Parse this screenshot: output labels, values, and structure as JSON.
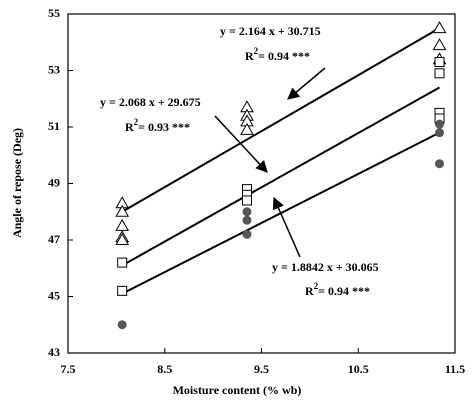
{
  "chart_data": {
    "type": "scatter",
    "xlabel": "Moisture content (% wb)",
    "ylabel": "Angle of repose (Deg)",
    "xlim": [
      7.5,
      11.5
    ],
    "ylim": [
      43,
      55
    ],
    "xticks": [
      7.5,
      8.5,
      9.5,
      10.5,
      11.5
    ],
    "yticks": [
      43,
      45,
      47,
      49,
      51,
      53,
      55
    ],
    "series": [
      {
        "marker": "triangle",
        "color": "#000000",
        "x": [
          8.06,
          8.06,
          8.06,
          8.06,
          8.06,
          9.35,
          9.35,
          9.35,
          9.35,
          11.34,
          11.34,
          11.34
        ],
        "values": [
          48.3,
          48.0,
          47.5,
          47.1,
          47.0,
          51.7,
          51.4,
          51.2,
          50.9,
          54.5,
          53.9,
          53.4
        ]
      },
      {
        "marker": "square",
        "color": "#000000",
        "x": [
          8.06,
          8.06,
          9.35,
          9.35,
          9.35,
          11.34,
          11.34,
          11.34,
          11.34
        ],
        "values": [
          46.2,
          45.2,
          48.8,
          48.6,
          48.4,
          53.3,
          52.9,
          51.5,
          51.3
        ]
      },
      {
        "marker": "circle",
        "color": "#555555",
        "x": [
          8.06,
          9.35,
          9.35,
          9.35,
          11.34,
          11.34,
          11.34
        ],
        "values": [
          44.0,
          48.0,
          47.7,
          47.2,
          51.1,
          50.8,
          49.7
        ]
      }
    ],
    "fit_lines": [
      {
        "x": [
          8.06,
          11.34
        ],
        "values": [
          48.0,
          54.5
        ]
      },
      {
        "x": [
          8.06,
          11.34
        ],
        "values": [
          46.1,
          52.4
        ]
      },
      {
        "x": [
          8.06,
          11.34
        ],
        "values": [
          45.1,
          50.8
        ]
      }
    ],
    "annotations": [
      {
        "equation": "y = 2.164  x + 30.715",
        "r2": [
          "R",
          "2",
          "= 0.94 ***"
        ]
      },
      {
        "equation": "y = 2.068  x + 29.675",
        "r2": [
          "R",
          "2",
          "= 0.93 ***"
        ]
      },
      {
        "equation": "y = 1.8842  x + 30.065",
        "r2": [
          "R",
          "2",
          "= 0.94 ***"
        ]
      }
    ]
  }
}
